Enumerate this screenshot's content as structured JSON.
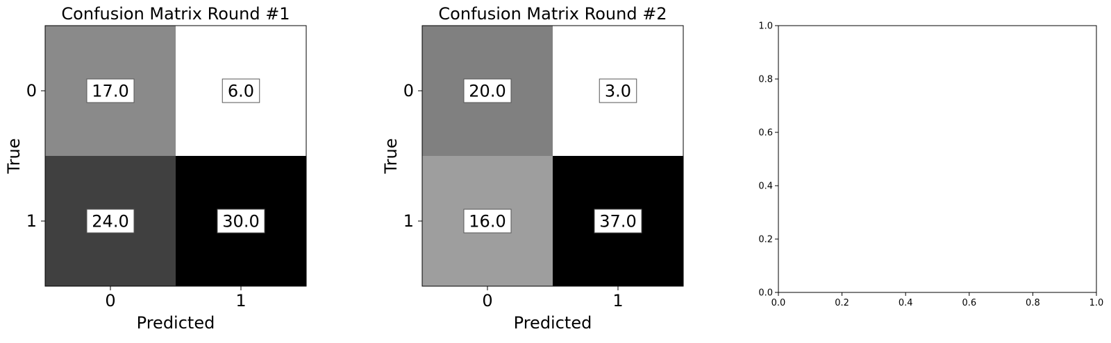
{
  "chart_data": [
    {
      "type": "heatmap",
      "title": "Confusion Matrix Round #1",
      "xlabel": "Predicted",
      "ylabel": "True",
      "x_tick_labels": [
        "0",
        "1"
      ],
      "y_tick_labels": [
        "0",
        "1"
      ],
      "matrix": [
        [
          17.0,
          6.0
        ],
        [
          24.0,
          30.0
        ]
      ],
      "cell_labels": [
        [
          "17.0",
          "6.0"
        ],
        [
          "24.0",
          "30.0"
        ]
      ],
      "colormap": "gray_r"
    },
    {
      "type": "heatmap",
      "title": "Confusion Matrix Round #2",
      "xlabel": "Predicted",
      "ylabel": "True",
      "x_tick_labels": [
        "0",
        "1"
      ],
      "y_tick_labels": [
        "0",
        "1"
      ],
      "matrix": [
        [
          20.0,
          3.0
        ],
        [
          16.0,
          37.0
        ]
      ],
      "cell_labels": [
        [
          "20.0",
          "3.0"
        ],
        [
          "16.0",
          "37.0"
        ]
      ],
      "colormap": "gray_r"
    },
    {
      "type": "scatter",
      "title": "",
      "xlabel": "",
      "ylabel": "",
      "xlim": [
        0.0,
        1.0
      ],
      "ylim": [
        0.0,
        1.0
      ],
      "x_tick_labels": [
        "0.0",
        "0.2",
        "0.4",
        "0.6",
        "0.8",
        "1.0"
      ],
      "y_tick_labels": [
        "0.0",
        "0.2",
        "0.4",
        "0.6",
        "0.8",
        "1.0"
      ],
      "series": []
    }
  ]
}
